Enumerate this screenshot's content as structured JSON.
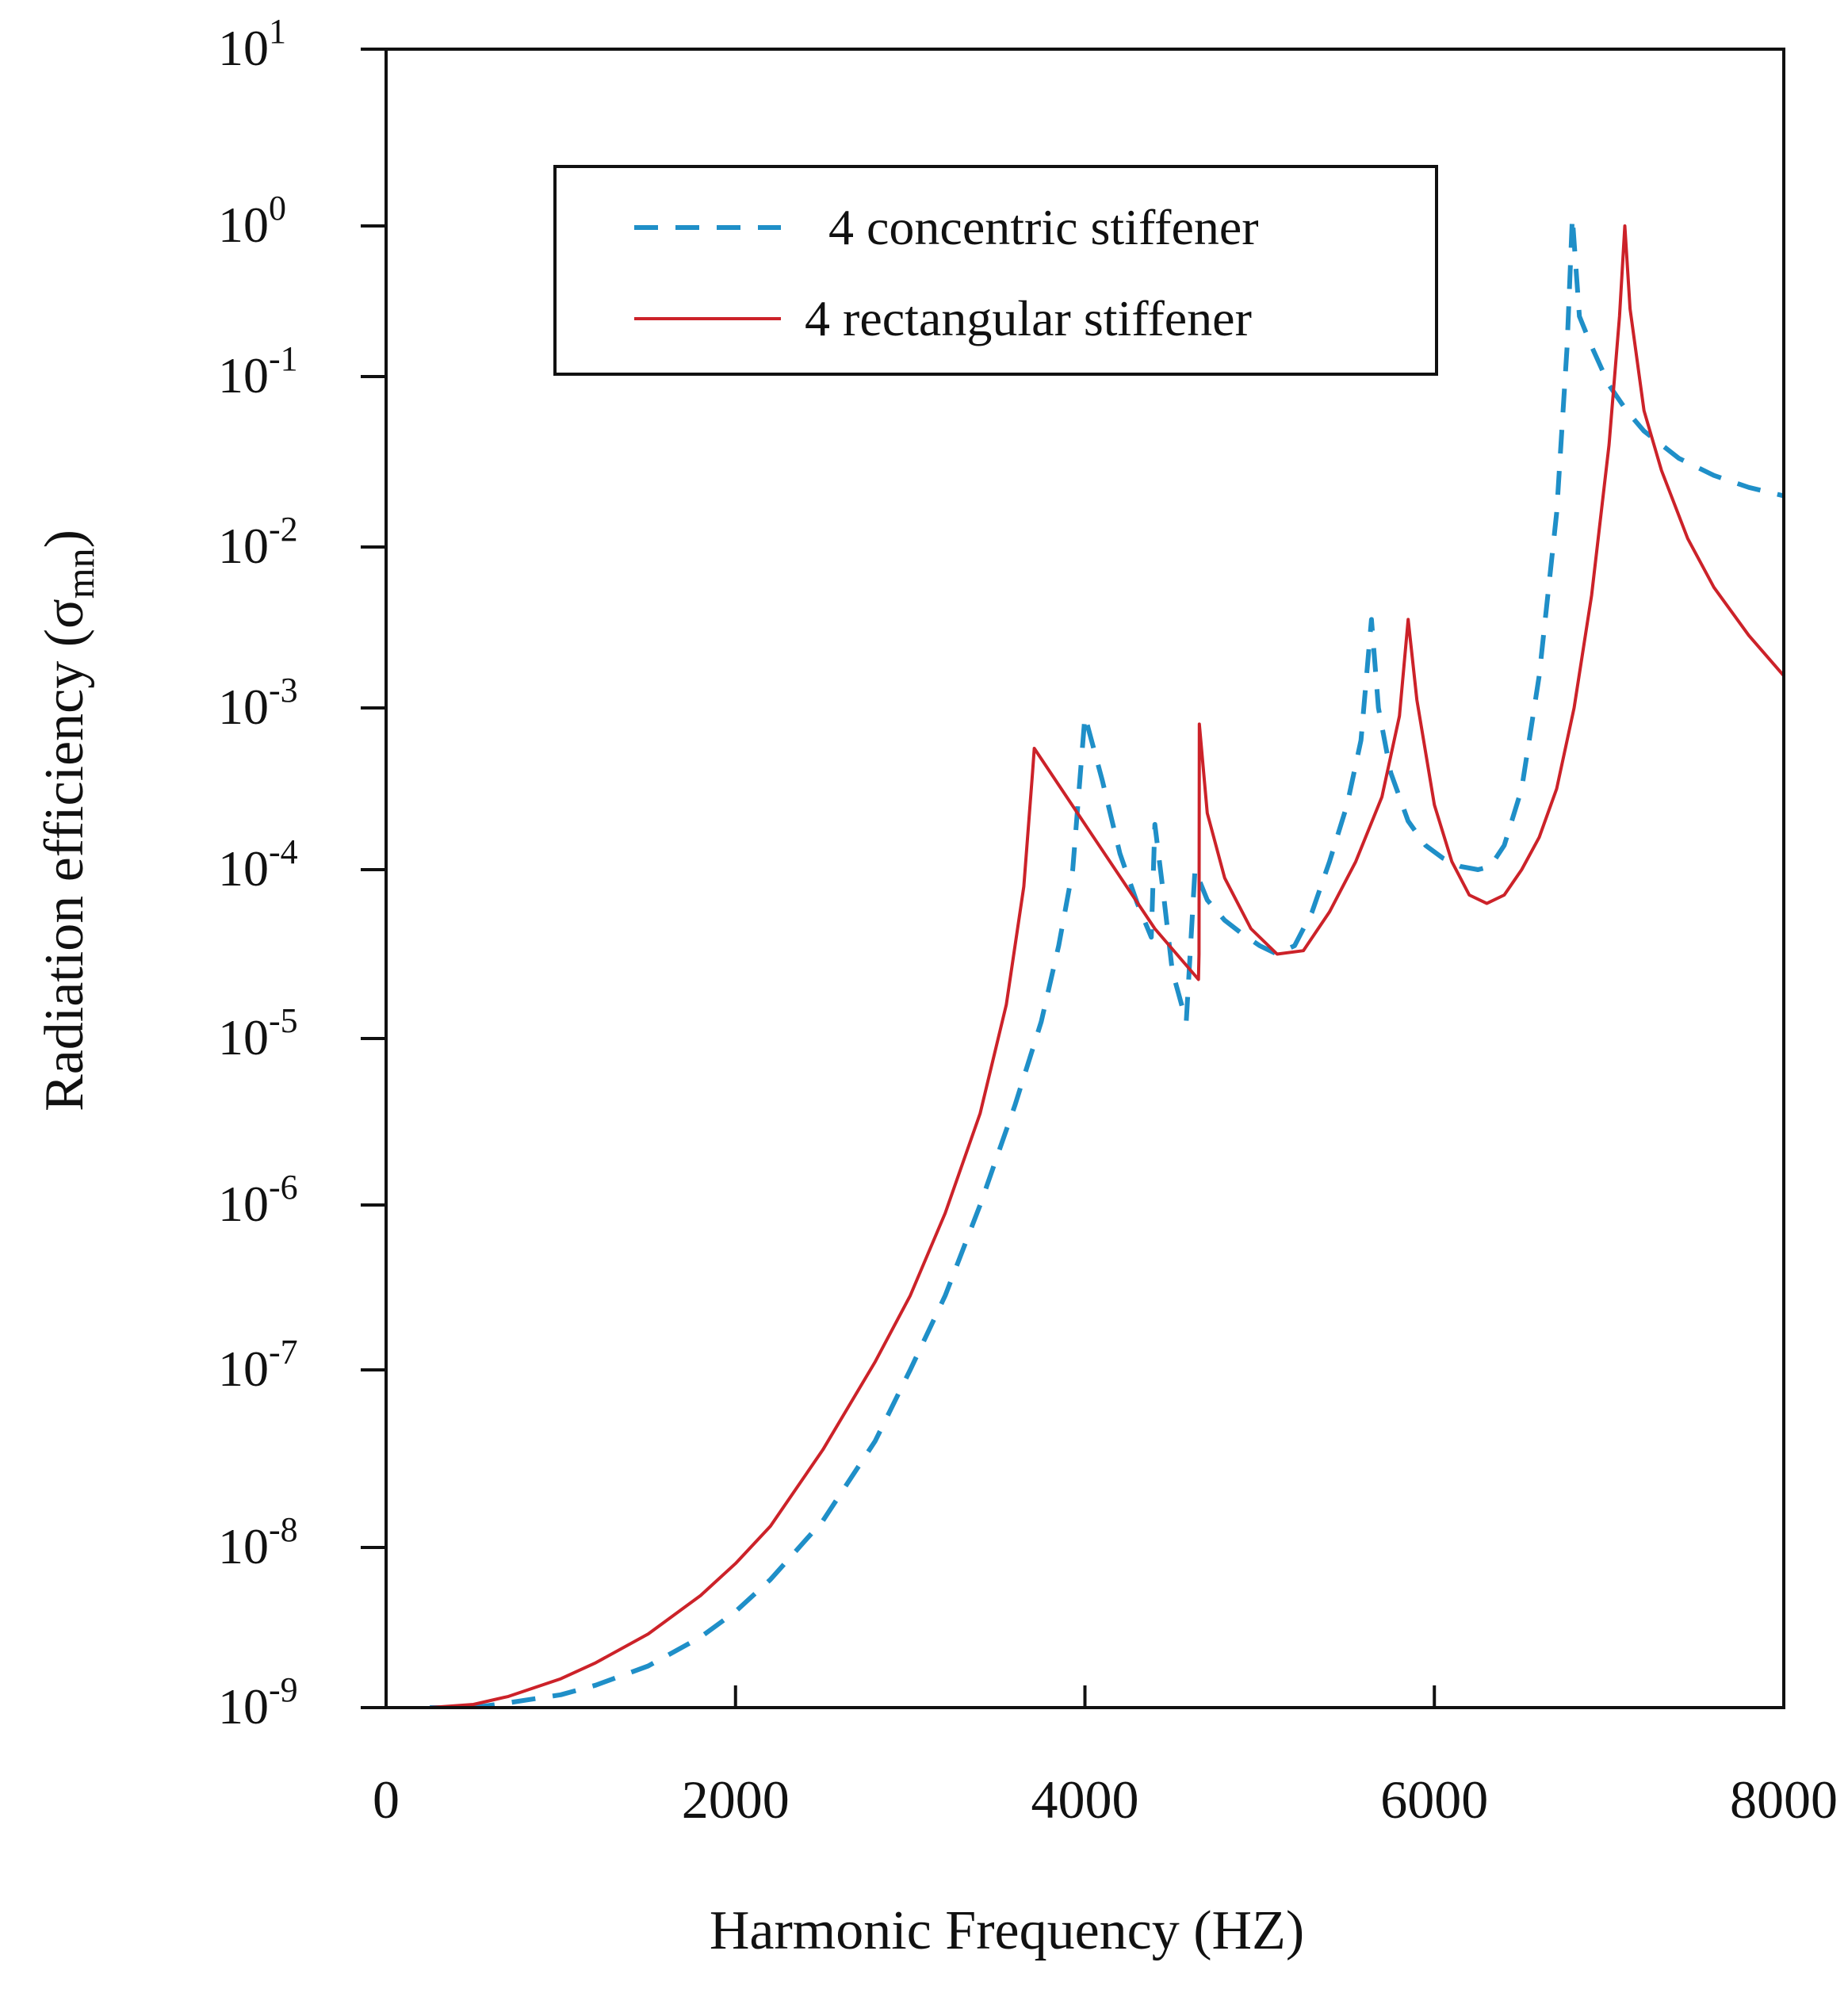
{
  "chart_data": {
    "type": "line",
    "title": "",
    "xlabel": "Harmonic Frequency (HZ)",
    "ylabel": "Radiation efficiency (σmn)",
    "ylabel_main": "Radiation efficiency (σ",
    "ylabel_sub": "mn",
    "ylabel_close": ")",
    "xlim": [
      0,
      8000
    ],
    "yscale": "log",
    "ylim_exponents": [
      -9,
      1
    ],
    "x_ticks": [
      0,
      2000,
      4000,
      6000,
      8000
    ],
    "x_tick_labels": [
      "0",
      "2000",
      "4000",
      "6000",
      "8000"
    ],
    "y_ticks": [
      {
        "base": "10",
        "exp": "1",
        "value": 1
      },
      {
        "base": "10",
        "exp": "0",
        "value": 0
      },
      {
        "base": "10",
        "exp": "-1",
        "value": -1
      },
      {
        "base": "10",
        "exp": "-2",
        "value": -2
      },
      {
        "base": "10",
        "exp": "-3",
        "value": -3
      },
      {
        "base": "10",
        "exp": "-4",
        "value": -4
      },
      {
        "base": "10",
        "exp": "-5",
        "value": -5
      },
      {
        "base": "10",
        "exp": "-6",
        "value": -6
      },
      {
        "base": "10",
        "exp": "-7",
        "value": -7
      },
      {
        "base": "10",
        "exp": "-8",
        "value": -8
      },
      {
        "base": "10",
        "exp": "-9",
        "value": -9
      }
    ],
    "grid": false,
    "legend_position": "top-center",
    "series": [
      {
        "name": "4 concentric stiffener",
        "color": "#1f8fc8",
        "style": "dashed",
        "log10_points": [
          [
            250,
            -9.0
          ],
          [
            500,
            -9.0
          ],
          [
            700,
            -8.97
          ],
          [
            1000,
            -8.92
          ],
          [
            1200,
            -8.86
          ],
          [
            1500,
            -8.74
          ],
          [
            1800,
            -8.56
          ],
          [
            2000,
            -8.4
          ],
          [
            2200,
            -8.2
          ],
          [
            2500,
            -7.85
          ],
          [
            2800,
            -7.4
          ],
          [
            3000,
            -7.0
          ],
          [
            3200,
            -6.55
          ],
          [
            3400,
            -6.0
          ],
          [
            3600,
            -5.4
          ],
          [
            3750,
            -4.9
          ],
          [
            3850,
            -4.45
          ],
          [
            3930,
            -4.0
          ],
          [
            4000,
            -3.05
          ],
          [
            4100,
            -3.45
          ],
          [
            4200,
            -3.9
          ],
          [
            4300,
            -4.2
          ],
          [
            4380,
            -4.4
          ],
          [
            4400,
            -3.72
          ],
          [
            4450,
            -4.15
          ],
          [
            4500,
            -4.6
          ],
          [
            4580,
            -4.9
          ],
          [
            4630,
            -4.0
          ],
          [
            4700,
            -4.18
          ],
          [
            4800,
            -4.3
          ],
          [
            4900,
            -4.38
          ],
          [
            5000,
            -4.45
          ],
          [
            5100,
            -4.5
          ],
          [
            5200,
            -4.45
          ],
          [
            5300,
            -4.25
          ],
          [
            5400,
            -3.95
          ],
          [
            5500,
            -3.6
          ],
          [
            5580,
            -3.2
          ],
          [
            5640,
            -2.45
          ],
          [
            5680,
            -3.0
          ],
          [
            5750,
            -3.4
          ],
          [
            5850,
            -3.7
          ],
          [
            5950,
            -3.85
          ],
          [
            6050,
            -3.93
          ],
          [
            6150,
            -3.98
          ],
          [
            6250,
            -4.0
          ],
          [
            6320,
            -3.98
          ],
          [
            6400,
            -3.85
          ],
          [
            6500,
            -3.5
          ],
          [
            6600,
            -2.8
          ],
          [
            6700,
            -1.8
          ],
          [
            6760,
            -0.8
          ],
          [
            6790,
            0.05
          ],
          [
            6830,
            -0.6
          ],
          [
            6900,
            -0.8
          ],
          [
            7000,
            -1.05
          ],
          [
            7100,
            -1.2
          ],
          [
            7200,
            -1.32
          ],
          [
            7400,
            -1.48
          ],
          [
            7600,
            -1.58
          ],
          [
            7800,
            -1.65
          ],
          [
            8000,
            -1.7
          ]
        ]
      },
      {
        "name": "4 rectangular stiffener",
        "color": "#cc2229",
        "style": "solid",
        "log10_points": [
          [
            250,
            -9.0
          ],
          [
            500,
            -8.98
          ],
          [
            700,
            -8.93
          ],
          [
            1000,
            -8.82
          ],
          [
            1200,
            -8.72
          ],
          [
            1500,
            -8.54
          ],
          [
            1800,
            -8.3
          ],
          [
            2000,
            -8.1
          ],
          [
            2200,
            -7.88
          ],
          [
            2500,
            -7.45
          ],
          [
            2800,
            -6.95
          ],
          [
            3000,
            -6.55
          ],
          [
            3200,
            -6.05
          ],
          [
            3400,
            -5.45
          ],
          [
            3550,
            -4.8
          ],
          [
            3650,
            -4.1
          ],
          [
            3700,
            -3.4
          ],
          [
            3710,
            -3.25
          ],
          [
            4050,
            -3.8
          ],
          [
            4400,
            -4.35
          ],
          [
            4650,
            -4.65
          ],
          [
            4653,
            -4.5
          ],
          [
            4655,
            -3.1
          ],
          [
            4700,
            -3.65
          ],
          [
            4800,
            -4.05
          ],
          [
            4950,
            -4.35
          ],
          [
            5100,
            -4.5
          ],
          [
            5250,
            -4.48
          ],
          [
            5400,
            -4.25
          ],
          [
            5550,
            -3.95
          ],
          [
            5700,
            -3.55
          ],
          [
            5800,
            -3.05
          ],
          [
            5850,
            -2.45
          ],
          [
            5900,
            -2.95
          ],
          [
            6000,
            -3.6
          ],
          [
            6100,
            -3.95
          ],
          [
            6200,
            -4.15
          ],
          [
            6300,
            -4.2
          ],
          [
            6400,
            -4.15
          ],
          [
            6500,
            -4.0
          ],
          [
            6600,
            -3.8
          ],
          [
            6700,
            -3.5
          ],
          [
            6800,
            -3.0
          ],
          [
            6900,
            -2.3
          ],
          [
            7000,
            -1.4
          ],
          [
            7060,
            -0.6
          ],
          [
            7090,
            0.0
          ],
          [
            7120,
            -0.55
          ],
          [
            7200,
            -1.2
          ],
          [
            7300,
            -1.55
          ],
          [
            7450,
            -1.95
          ],
          [
            7600,
            -2.25
          ],
          [
            7800,
            -2.55
          ],
          [
            8000,
            -2.8
          ]
        ]
      }
    ]
  }
}
